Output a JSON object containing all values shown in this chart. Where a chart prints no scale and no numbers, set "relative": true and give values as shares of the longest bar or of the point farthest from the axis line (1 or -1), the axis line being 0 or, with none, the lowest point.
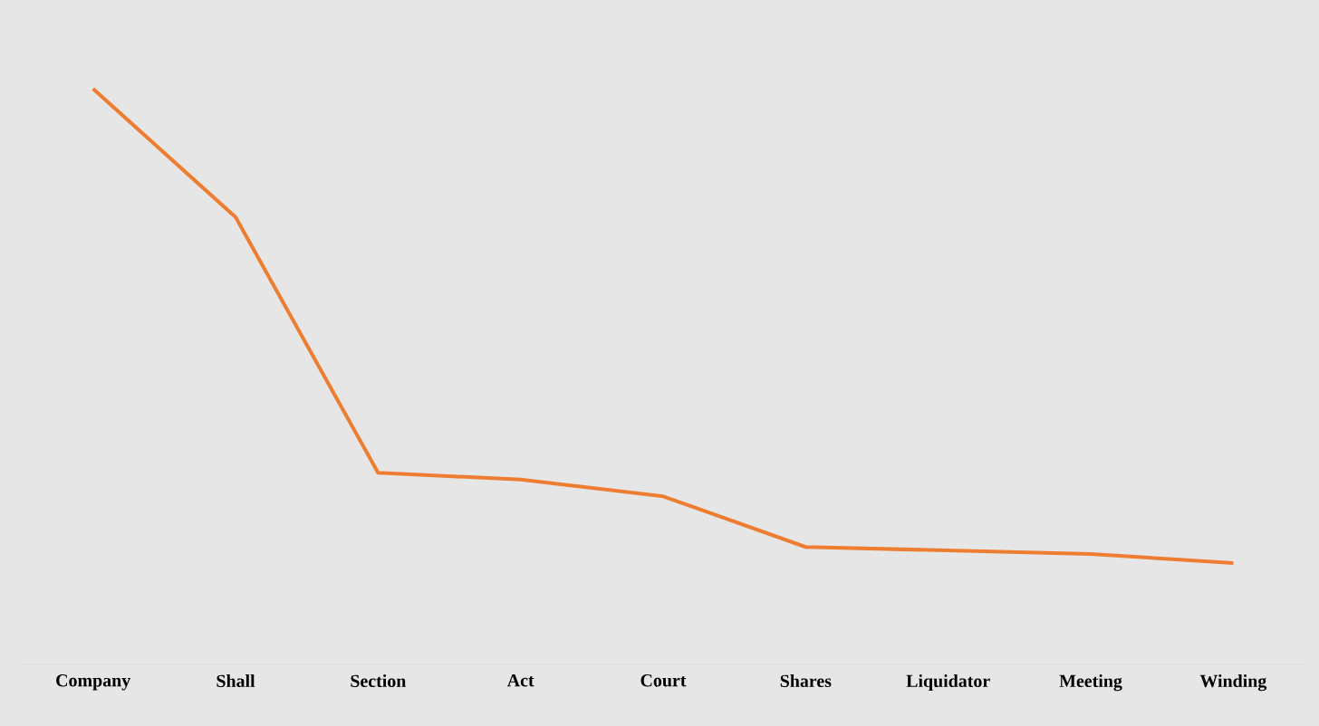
{
  "chart_data": {
    "type": "line",
    "relative": true,
    "categories": [
      "Company",
      "Shall",
      "Section",
      "Act",
      "Court",
      "Shares",
      "Liquidator",
      "Meeting",
      "Winding"
    ],
    "series": [
      {
        "color": "#ed7d31",
        "values": [
          1,
          0.777,
          0.333,
          0.321,
          0.292,
          0.204,
          0.198,
          0.192,
          0.176
        ]
      }
    ],
    "marker": "none",
    "line_style": "solid",
    "grid": false
  }
}
